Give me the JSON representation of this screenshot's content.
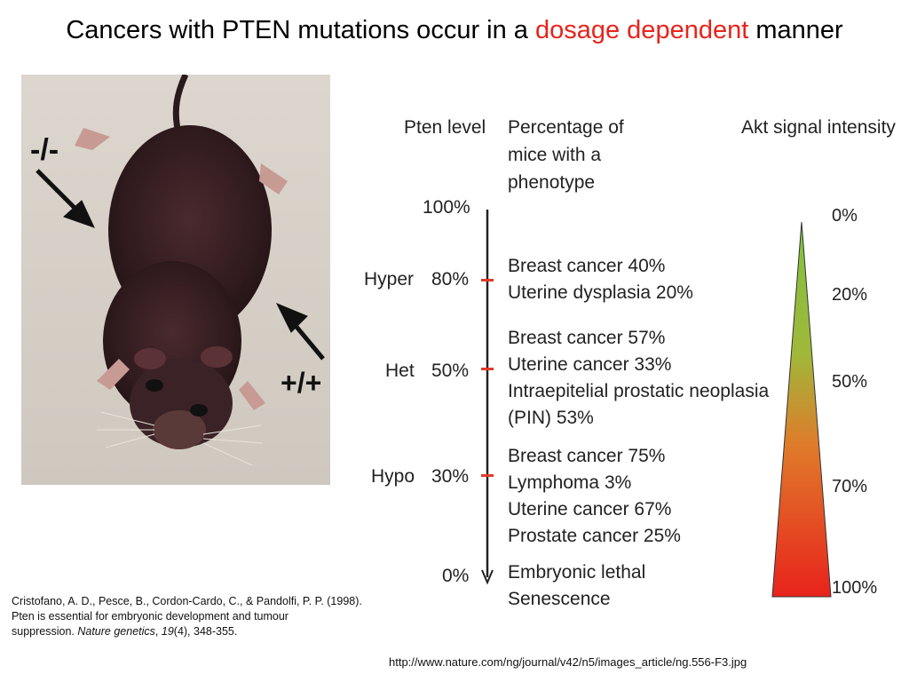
{
  "title": {
    "prefix": "Cancers with PTEN mutations occur in a",
    "highlight": "dosage dependent",
    "suffix": "manner"
  },
  "photo": {
    "label_ko": "-/-",
    "label_wt": "+/+"
  },
  "headers": {
    "pten_level": "Pten level",
    "percentage": [
      "Percentage of",
      "mice with a",
      "phenotype"
    ],
    "akt": "Akt signal intensity"
  },
  "levels": [
    {
      "name": "",
      "pct": "100%"
    },
    {
      "name": "Hyper",
      "pct": "80%"
    },
    {
      "name": "Het",
      "pct": "50%"
    },
    {
      "name": "Hypo",
      "pct": "30%"
    },
    {
      "name": "",
      "pct": "0%"
    }
  ],
  "phenotypes": {
    "hyper": [
      "Breast cancer 40%",
      "Uterine dysplasia 20%"
    ],
    "het": [
      "Breast cancer 57%",
      "Uterine cancer 33%",
      "Intraepitelial prostatic neoplasia",
      "(PIN) 53%"
    ],
    "hypo": [
      "Breast cancer 75%",
      "Lymphoma 3%",
      "Uterine cancer 67%",
      "Prostate cancer 25%"
    ],
    "null": [
      "Embryonic lethal",
      "Senescence"
    ]
  },
  "akt_levels": [
    "0%",
    "20%",
    "50%",
    "70%",
    "100%"
  ],
  "colors": {
    "highlight": "#e8231c",
    "tick": "#e23a2a",
    "gradient_top": "#7fc241",
    "gradient_bottom": "#e8231c"
  },
  "citation": {
    "line1": "Cristofano, A. D., Pesce, B., Cordon-Cardo, C., & Pandolfi, P. P. (1998).",
    "line2": "Pten is essential for embryonic development and tumour",
    "line3_a": "suppression. ",
    "journal": "Nature genetics",
    "sep1": ", ",
    "volume": "19",
    "rest": "(4), 348-355."
  },
  "url": "http://www.nature.com/ng/journal/v42/n5/images_article/ng.556-F3.jpg"
}
